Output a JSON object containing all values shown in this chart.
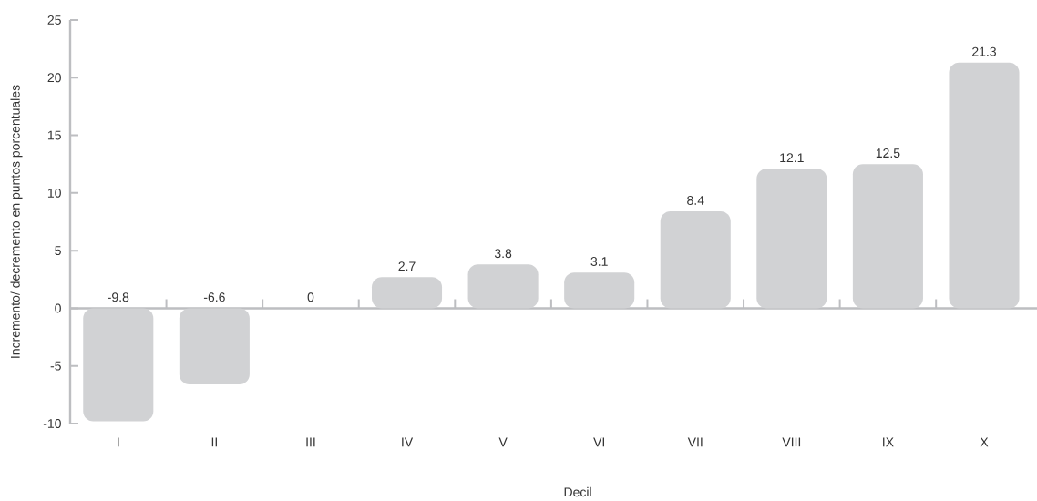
{
  "chart_data": {
    "type": "bar",
    "xlabel": "Decil",
    "ylabel": "Incremento/ decremento en puntos porcentuales",
    "categories": [
      "I",
      "II",
      "III",
      "IV",
      "V",
      "VI",
      "VII",
      "VIII",
      "IX",
      "X"
    ],
    "values": [
      -9.8,
      -6.6,
      0,
      2.7,
      3.8,
      3.1,
      8.4,
      12.1,
      12.5,
      21.3
    ],
    "color": "#d1d2d4",
    "ylim": [
      -10,
      25
    ],
    "yticks": [
      -10,
      -5,
      0,
      5,
      10,
      15,
      20,
      25
    ],
    "data_labels": true
  }
}
